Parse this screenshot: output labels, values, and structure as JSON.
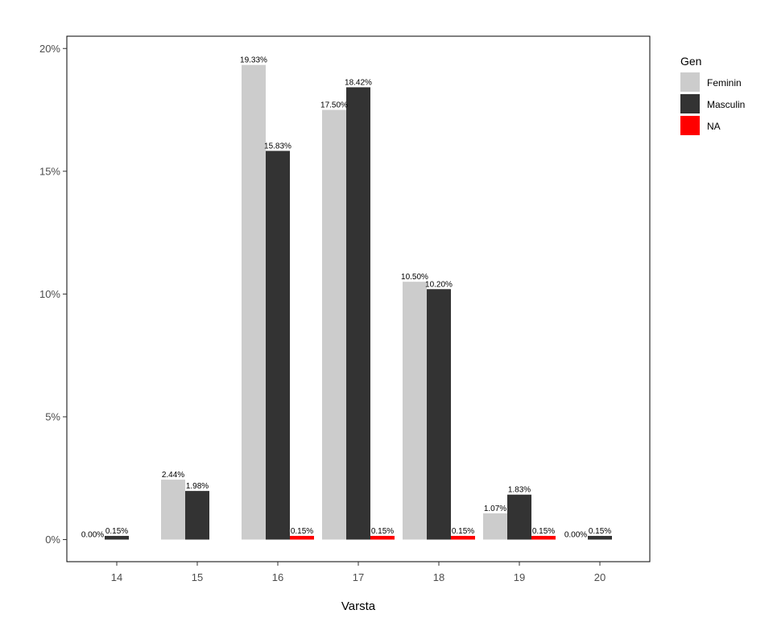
{
  "chart_data": {
    "type": "bar",
    "categories": [
      "14",
      "15",
      "16",
      "17",
      "18",
      "19",
      "20"
    ],
    "xlabel": "Varsta",
    "ylabel": "",
    "ylim": [
      -0.9,
      20.5
    ],
    "y_ticks": [
      {
        "value": 0,
        "label": "0%"
      },
      {
        "value": 5,
        "label": "5%"
      },
      {
        "value": 10,
        "label": "10%"
      },
      {
        "value": 15,
        "label": "15%"
      },
      {
        "value": 20,
        "label": "20%"
      }
    ],
    "grid": false,
    "legend": {
      "title": "Gen",
      "position": "right"
    },
    "series": [
      {
        "name": "Feminin",
        "color": "#cccccc",
        "values": [
          0.0,
          2.44,
          19.33,
          17.5,
          10.5,
          1.07,
          0.0
        ],
        "labels": [
          "0.00%",
          "2.44%",
          "19.33%",
          "17.50%",
          "10.50%",
          "1.07%",
          "0.00%"
        ]
      },
      {
        "name": "Masculin",
        "color": "#333333",
        "values": [
          0.15,
          1.98,
          15.83,
          18.42,
          10.2,
          1.83,
          0.15
        ],
        "labels": [
          "0.15%",
          "1.98%",
          "15.83%",
          "18.42%",
          "10.20%",
          "1.83%",
          "0.15%"
        ]
      },
      {
        "name": "NA",
        "color": "#ff0000",
        "values": [
          null,
          null,
          0.15,
          0.15,
          0.15,
          0.15,
          null
        ],
        "labels": [
          null,
          null,
          "0.15%",
          "0.15%",
          "0.15%",
          "0.15%",
          null
        ]
      }
    ]
  }
}
